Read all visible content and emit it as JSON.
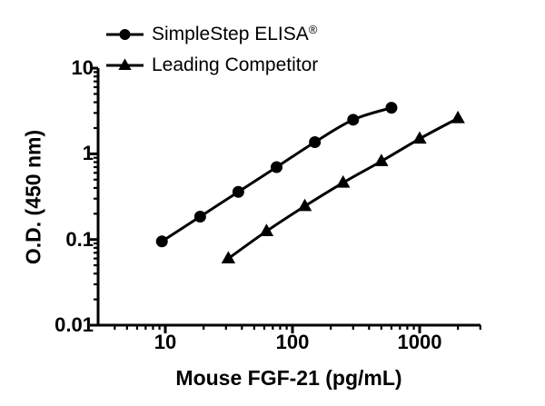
{
  "figure": {
    "background": "#ffffff",
    "ink_color": "#000000"
  },
  "legend": {
    "items": [
      {
        "label": "SimpleStep ELISA",
        "suffix": "®",
        "marker": "circle"
      },
      {
        "label": "Leading Competitor",
        "suffix": "",
        "marker": "triangle"
      }
    ]
  },
  "chart_data": {
    "type": "line",
    "title": "",
    "xlabel": "Mouse FGF-21 (pg/mL)",
    "ylabel": "O.D. (450 nm)",
    "x_scale": "log",
    "y_scale": "log",
    "xlim": [
      3,
      3000
    ],
    "ylim": [
      0.01,
      10
    ],
    "x_ticks": [
      10,
      100,
      1000
    ],
    "x_tick_labels": [
      "10",
      "100",
      "1000"
    ],
    "y_ticks": [
      10,
      1,
      0.1,
      0.01
    ],
    "y_tick_labels": [
      "10",
      "1",
      "0.1",
      "0.01"
    ],
    "grid": false,
    "legend_position": "top-left inside",
    "series": [
      {
        "name": "SimpleStep ELISA®",
        "marker": "circle",
        "color": "#000000",
        "x": [
          9.4,
          18.8,
          37.5,
          75,
          150,
          300,
          600
        ],
        "y": [
          0.095,
          0.185,
          0.36,
          0.7,
          1.37,
          2.5,
          3.45
        ]
      },
      {
        "name": "Leading Competitor",
        "marker": "triangle",
        "color": "#000000",
        "x": [
          31.3,
          62.5,
          125,
          250,
          500,
          1000,
          2000
        ],
        "y": [
          0.06,
          0.125,
          0.245,
          0.46,
          0.82,
          1.5,
          2.6
        ]
      }
    ]
  }
}
